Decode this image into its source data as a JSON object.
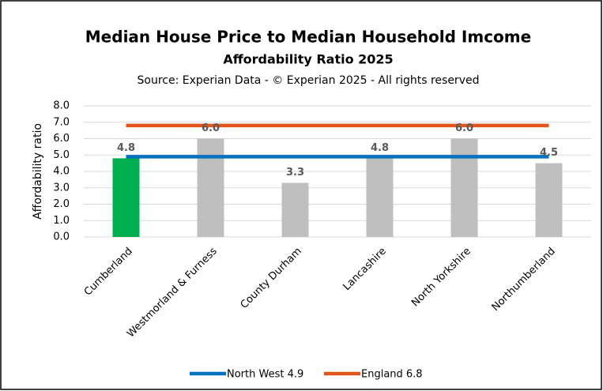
{
  "chart_data": {
    "type": "bar",
    "title": "Median House Price to Median Household Imcome",
    "subtitle": "Affordability Ratio 2025",
    "source": "Source: Experian Data - © Experian 2025 - All rights reserved",
    "y_label": "Affordability ratio",
    "categories": [
      "Cumberland",
      "Westmorland & Furness",
      "County Durham",
      "Lancashire",
      "North Yorkshire",
      "Northumberland"
    ],
    "values": [
      4.8,
      6.0,
      3.3,
      4.8,
      6.0,
      4.5
    ],
    "value_labels": [
      "4.8",
      "6.0",
      "3.3",
      "4.8",
      "6.0",
      "4.5"
    ],
    "colors": [
      "#00b050",
      "#bfbfbf",
      "#bfbfbf",
      "#bfbfbf",
      "#bfbfbf",
      "#bfbfbf"
    ],
    "series": [
      {
        "name": "North West 4.9",
        "color": "#0070c0",
        "values": [
          4.9,
          4.9,
          4.9,
          4.9,
          4.9,
          4.9
        ]
      },
      {
        "name": "England 6.8",
        "color": "#e2561b",
        "values": [
          6.8,
          6.8,
          6.8,
          6.8,
          6.8,
          6.8
        ]
      }
    ],
    "ylim": [
      0,
      8
    ],
    "yticks": [
      {
        "value": 0,
        "label": "0.0"
      },
      {
        "value": 1,
        "label": "1.0"
      },
      {
        "value": 2,
        "label": "2.0"
      },
      {
        "value": 3,
        "label": "3.0"
      },
      {
        "value": 4,
        "label": "4.0"
      },
      {
        "value": 5,
        "label": "5.0"
      },
      {
        "value": 6,
        "label": "6.0"
      },
      {
        "value": 7,
        "label": "7.0"
      },
      {
        "value": 8,
        "label": "8.0"
      }
    ],
    "grid": true,
    "legend": "bottom"
  }
}
